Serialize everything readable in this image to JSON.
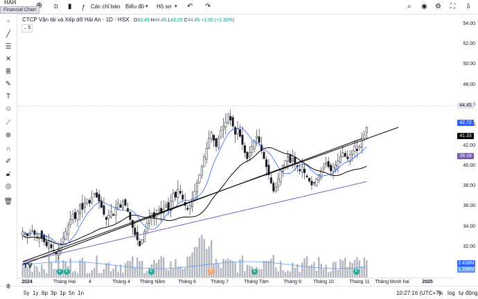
{
  "window": {
    "title": "Financial Chart",
    "symbol_partial": "HAH"
  },
  "topbar": {
    "interval": "D",
    "indicators_label": "Các chỉ báo",
    "chart_menu": "Biểu đồ",
    "profile_menu": "Hồ sơ"
  },
  "legend": {
    "title": "CTCP Vận tải và Xếp dỡ Hải An · 1D · HSX",
    "o_label": "O",
    "o": "43.45",
    "h_label": "H",
    "h": "44.45",
    "l_label": "L",
    "l": "43.25",
    "c_label": "C",
    "c": "44.45",
    "change": "+1.00 (+2.30%)",
    "collapse_count": "5"
  },
  "y_axis": {
    "ticks": [
      "54.00",
      "52.00",
      "50.00",
      "48.00",
      "46.00",
      "44.00",
      "42.00",
      "40.00",
      "38.00",
      "36.00",
      "34.00",
      "32.00",
      "30.00"
    ],
    "price_badge": "44.45",
    "ma_fast_badge": "42.72",
    "ma_mid_badge": "41.33",
    "ma_slow_badge": "39.18",
    "vol_badge_1": "2.438M",
    "vol_badge_2": "1.336M"
  },
  "x_axis": {
    "ticks": [
      "2024",
      "Tháng Hai",
      "4",
      "Tháng 4",
      "Tháng Năm",
      "Tháng 6",
      "Tháng 7",
      "Tháng Tám",
      "Tháng 9",
      "Tháng 10",
      "Tháng 11",
      "Tháng Mười hai",
      "2025"
    ]
  },
  "bottombar": {
    "ranges": [
      "5y",
      "1y",
      "6p",
      "3p",
      "1p",
      "5n",
      "1n"
    ],
    "clock": "10:27:16 (UTC+7)",
    "pct": "%",
    "log": "log",
    "auto": "tự động"
  },
  "events": [
    {
      "label": "E",
      "color": "#22ab94"
    },
    {
      "label": "E",
      "color": "#22ab94"
    },
    {
      "label": "E",
      "color": "#22ab94"
    },
    {
      "label": "S",
      "color": "#f7a35c"
    },
    {
      "label": "E",
      "color": "#22ab94"
    },
    {
      "label": "E",
      "color": "#22ab94"
    },
    {
      "label": "E",
      "color": "#22ab94"
    }
  ],
  "colors": {
    "up": "#131722",
    "ma_fast": "#2962ff",
    "ma_mid": "#000000",
    "ma_slow": "#7e57c2",
    "volume": "#b2b5be",
    "vol_line": "#5b9cf6"
  },
  "chart_data": {
    "type": "candlestick",
    "x": "daily bars 2024-01 to 2024-11",
    "ylim": [
      29,
      55
    ],
    "close": [
      34.2,
      34.0,
      33.8,
      34.1,
      34.3,
      33.9,
      33.7,
      34.0,
      33.6,
      33.2,
      32.8,
      33.1,
      32.6,
      32.3,
      32.0,
      32.4,
      33.0,
      33.6,
      34.2,
      34.8,
      35.4,
      35.9,
      35.5,
      36.2,
      36.8,
      36.4,
      37.0,
      37.4,
      37.0,
      37.6,
      38.0,
      37.6,
      37.2,
      36.6,
      35.9,
      35.4,
      35.8,
      36.2,
      35.8,
      36.6,
      37.0,
      36.6,
      37.2,
      36.8,
      36.2,
      35.4,
      34.6,
      33.9,
      33.4,
      32.8,
      33.4,
      34.2,
      35.0,
      35.6,
      36.0,
      35.6,
      36.0,
      36.4,
      36.0,
      36.4,
      36.8,
      36.4,
      37.2,
      38.0,
      37.6,
      38.4,
      38.0,
      37.4,
      36.8,
      36.4,
      36.8,
      37.4,
      38.2,
      39.0,
      39.8,
      40.6,
      41.6,
      42.4,
      43.4,
      44.0,
      43.2,
      42.6,
      43.4,
      44.2,
      44.6,
      45.0,
      45.8,
      45.2,
      44.6,
      43.8,
      44.4,
      43.6,
      42.8,
      42.0,
      41.4,
      42.0,
      42.6,
      43.2,
      43.6,
      43.0,
      42.2,
      41.4,
      40.6,
      39.8,
      39.0,
      38.2,
      38.6,
      39.4,
      40.2,
      40.8,
      41.2,
      41.6,
      41.0,
      41.4,
      41.0,
      40.6,
      40.2,
      40.6,
      40.0,
      39.6,
      39.2,
      38.8,
      39.0,
      39.4,
      39.8,
      40.2,
      40.6,
      41.0,
      40.6,
      40.2,
      40.6,
      40.8,
      41.2,
      41.6,
      42.0,
      41.6,
      41.4,
      41.8,
      42.2,
      42.6,
      42.2,
      42.6,
      43.2,
      43.8,
      44.45
    ]
  }
}
